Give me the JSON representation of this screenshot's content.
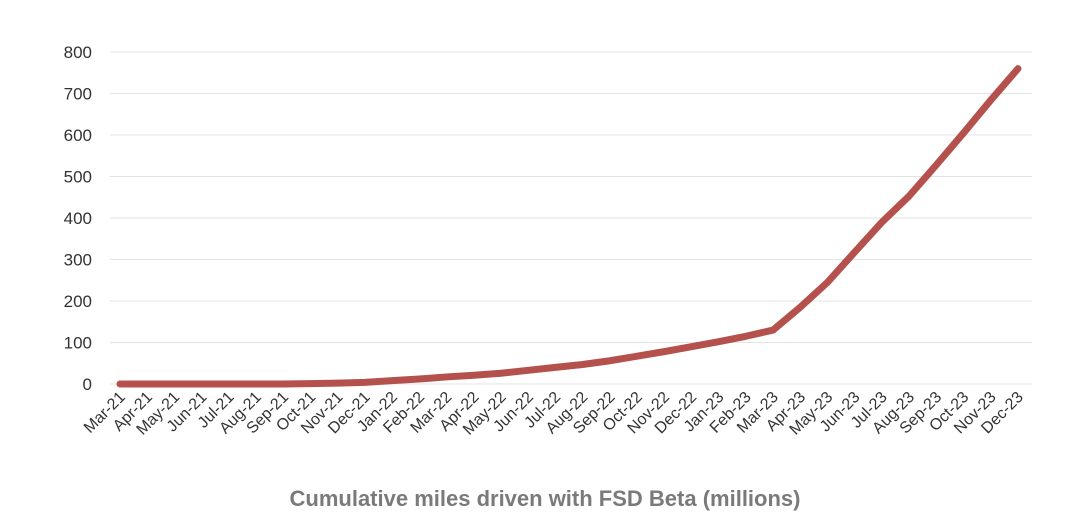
{
  "chart_data": {
    "type": "line",
    "title": "Cumulative miles driven with FSD Beta (millions)",
    "categories": [
      "Mar-21",
      "Apr-21",
      "May-21",
      "Jun-21",
      "Jul-21",
      "Aug-21",
      "Sep-21",
      "Oct-21",
      "Nov-21",
      "Dec-21",
      "Jan-22",
      "Feb-22",
      "Mar-22",
      "Apr-22",
      "May-22",
      "Jun-22",
      "Jul-22",
      "Aug-22",
      "Sep-22",
      "Oct-22",
      "Nov-22",
      "Dec-22",
      "Jan-23",
      "Feb-23",
      "Mar-23",
      "Apr-23",
      "May-23",
      "Jun-23",
      "Jul-23",
      "Aug-23",
      "Sep-23",
      "Oct-23",
      "Nov-23",
      "Dec-23"
    ],
    "series": [
      {
        "name": "Cumulative miles driven with FSD Beta (millions)",
        "color": "#b5514d",
        "values": [
          0,
          0,
          0,
          0,
          0,
          0,
          0,
          1,
          2,
          4,
          8,
          12,
          17,
          21,
          26,
          33,
          40,
          47,
          56,
          67,
          78,
          90,
          102,
          115,
          130,
          185,
          245,
          318,
          390,
          453,
          528,
          605,
          684,
          760
        ]
      }
    ],
    "ylim": [
      0,
      800
    ],
    "yticks": [
      0,
      100,
      200,
      300,
      400,
      500,
      600,
      700,
      800
    ],
    "grid": true
  }
}
